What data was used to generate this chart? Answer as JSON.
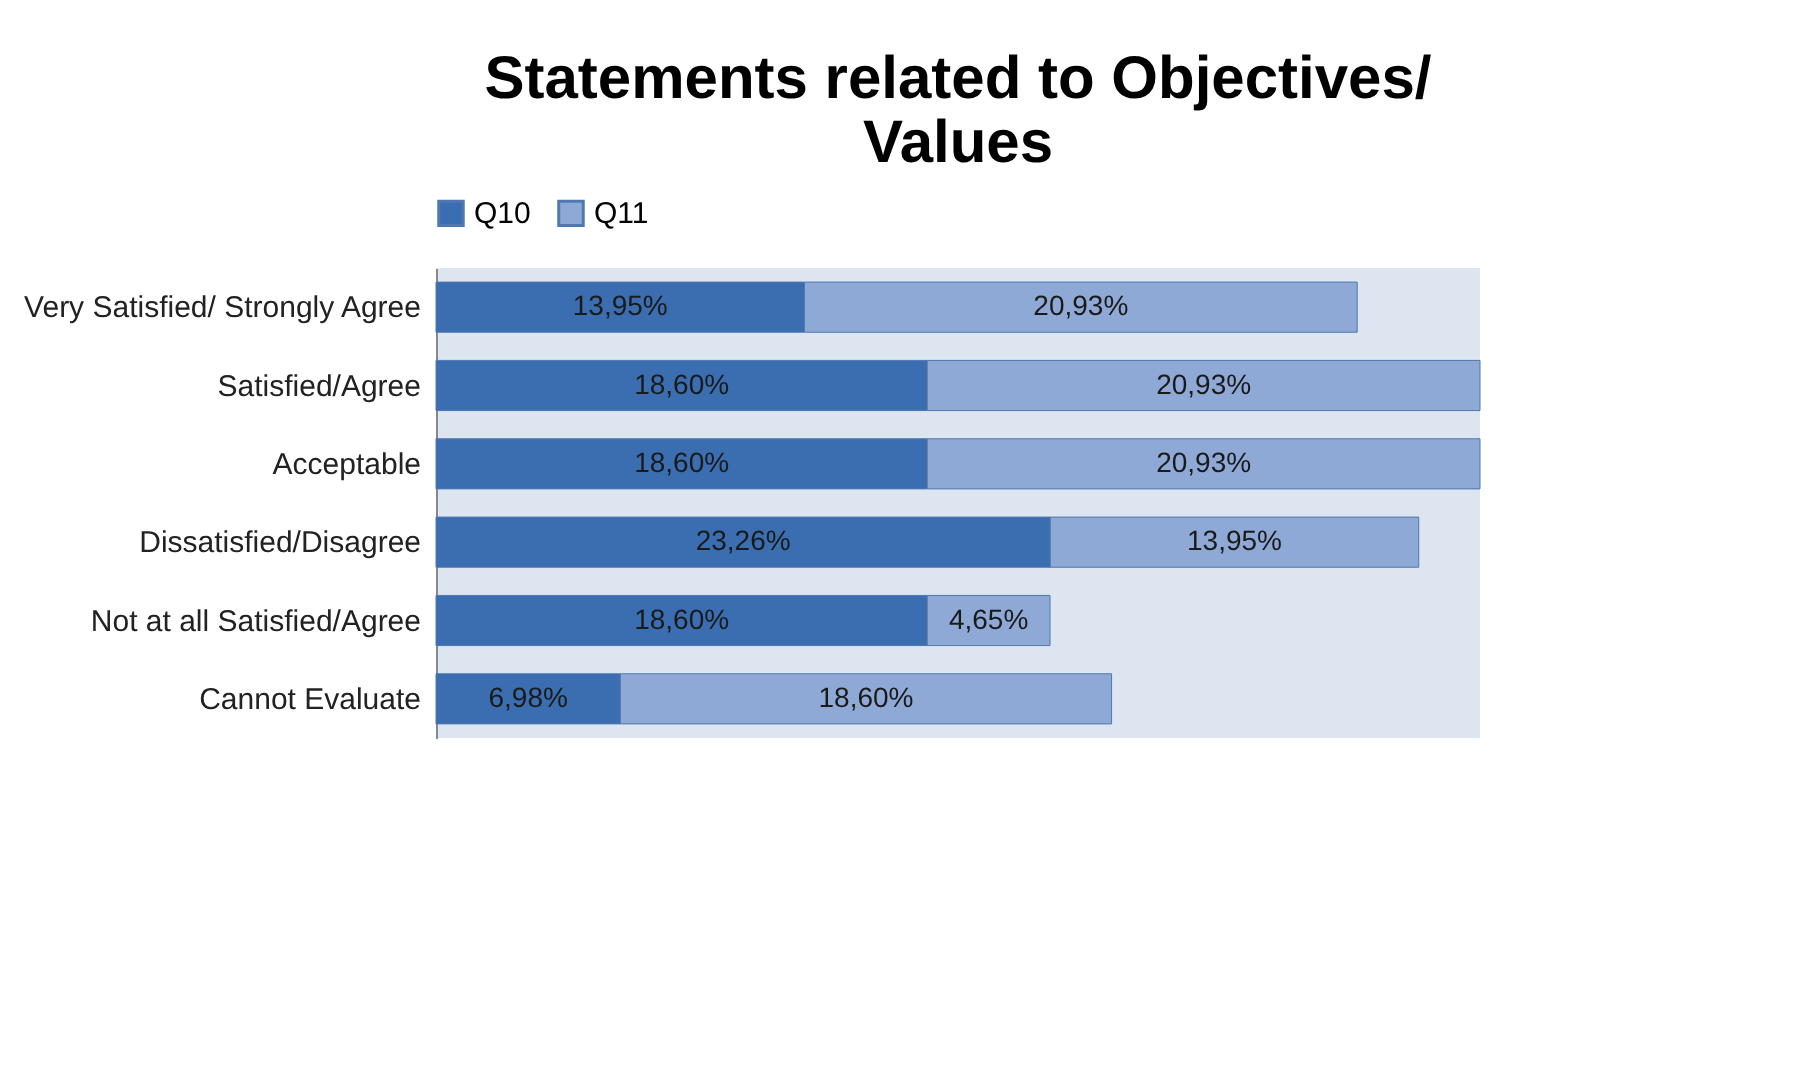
{
  "chart_data": {
    "type": "bar",
    "title": "Statements related to Objectives/ Values",
    "orientation": "horizontal",
    "stacked": true,
    "legend": "top",
    "tick_labels": "y",
    "categories": [
      "Very Satisfied/ Strongly Agree",
      "Satisfied/Agree",
      "Acceptable",
      "Dissatisfied/Disagree",
      "Not at all Satisfied/Agree",
      "Cannot Evaluate"
    ],
    "series": [
      {
        "name": "Q10",
        "color": "#3a6eb0",
        "values": [
          13.95,
          18.6,
          18.6,
          23.26,
          18.6,
          6.98
        ],
        "value_labels": [
          "13,95%",
          "18,60%",
          "18,60%",
          "23,26%",
          "18,60%",
          "6,98%"
        ]
      },
      {
        "name": "Q11",
        "color": "#8fa9d6",
        "values": [
          20.93,
          20.93,
          20.93,
          13.95,
          4.65,
          18.6
        ],
        "value_labels": [
          "20,93%",
          "20,93%",
          "20,93%",
          "13,95%",
          "4,65%",
          "18,60%"
        ]
      }
    ]
  }
}
